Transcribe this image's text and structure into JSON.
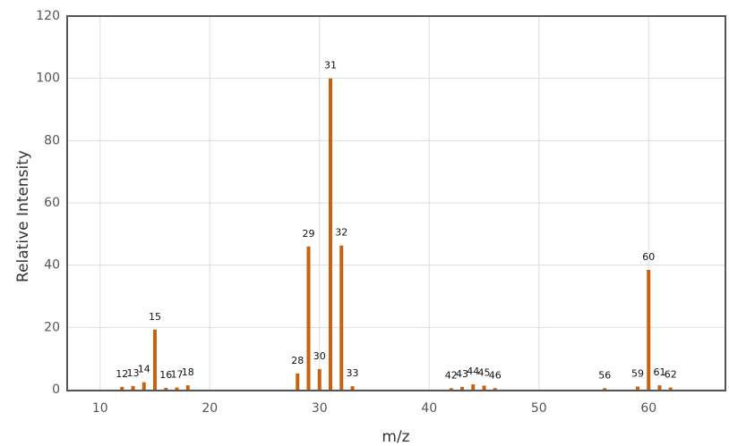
{
  "chart_data": {
    "type": "bar",
    "x_label": "m/z",
    "y_label": "Relative Intensity",
    "x": [
      12,
      13,
      14,
      15,
      16,
      17,
      18,
      28,
      29,
      30,
      31,
      32,
      33,
      42,
      43,
      44,
      45,
      46,
      56,
      59,
      60,
      61,
      62
    ],
    "values": [
      0.9,
      1.2,
      2.4,
      19.3,
      0.6,
      0.7,
      1.4,
      5.2,
      46,
      6.6,
      100,
      46.3,
      1.1,
      0.5,
      0.9,
      1.7,
      1.3,
      0.5,
      0.5,
      1.0,
      38.5,
      1.4,
      0.7
    ],
    "color": "#c8620e",
    "xlim": [
      7,
      67
    ],
    "xticks": [
      10,
      20,
      30,
      40,
      50,
      60
    ],
    "ylim": [
      0,
      120
    ],
    "yticks": [
      0,
      20,
      40,
      60,
      80,
      100,
      120
    ],
    "grid": true
  }
}
